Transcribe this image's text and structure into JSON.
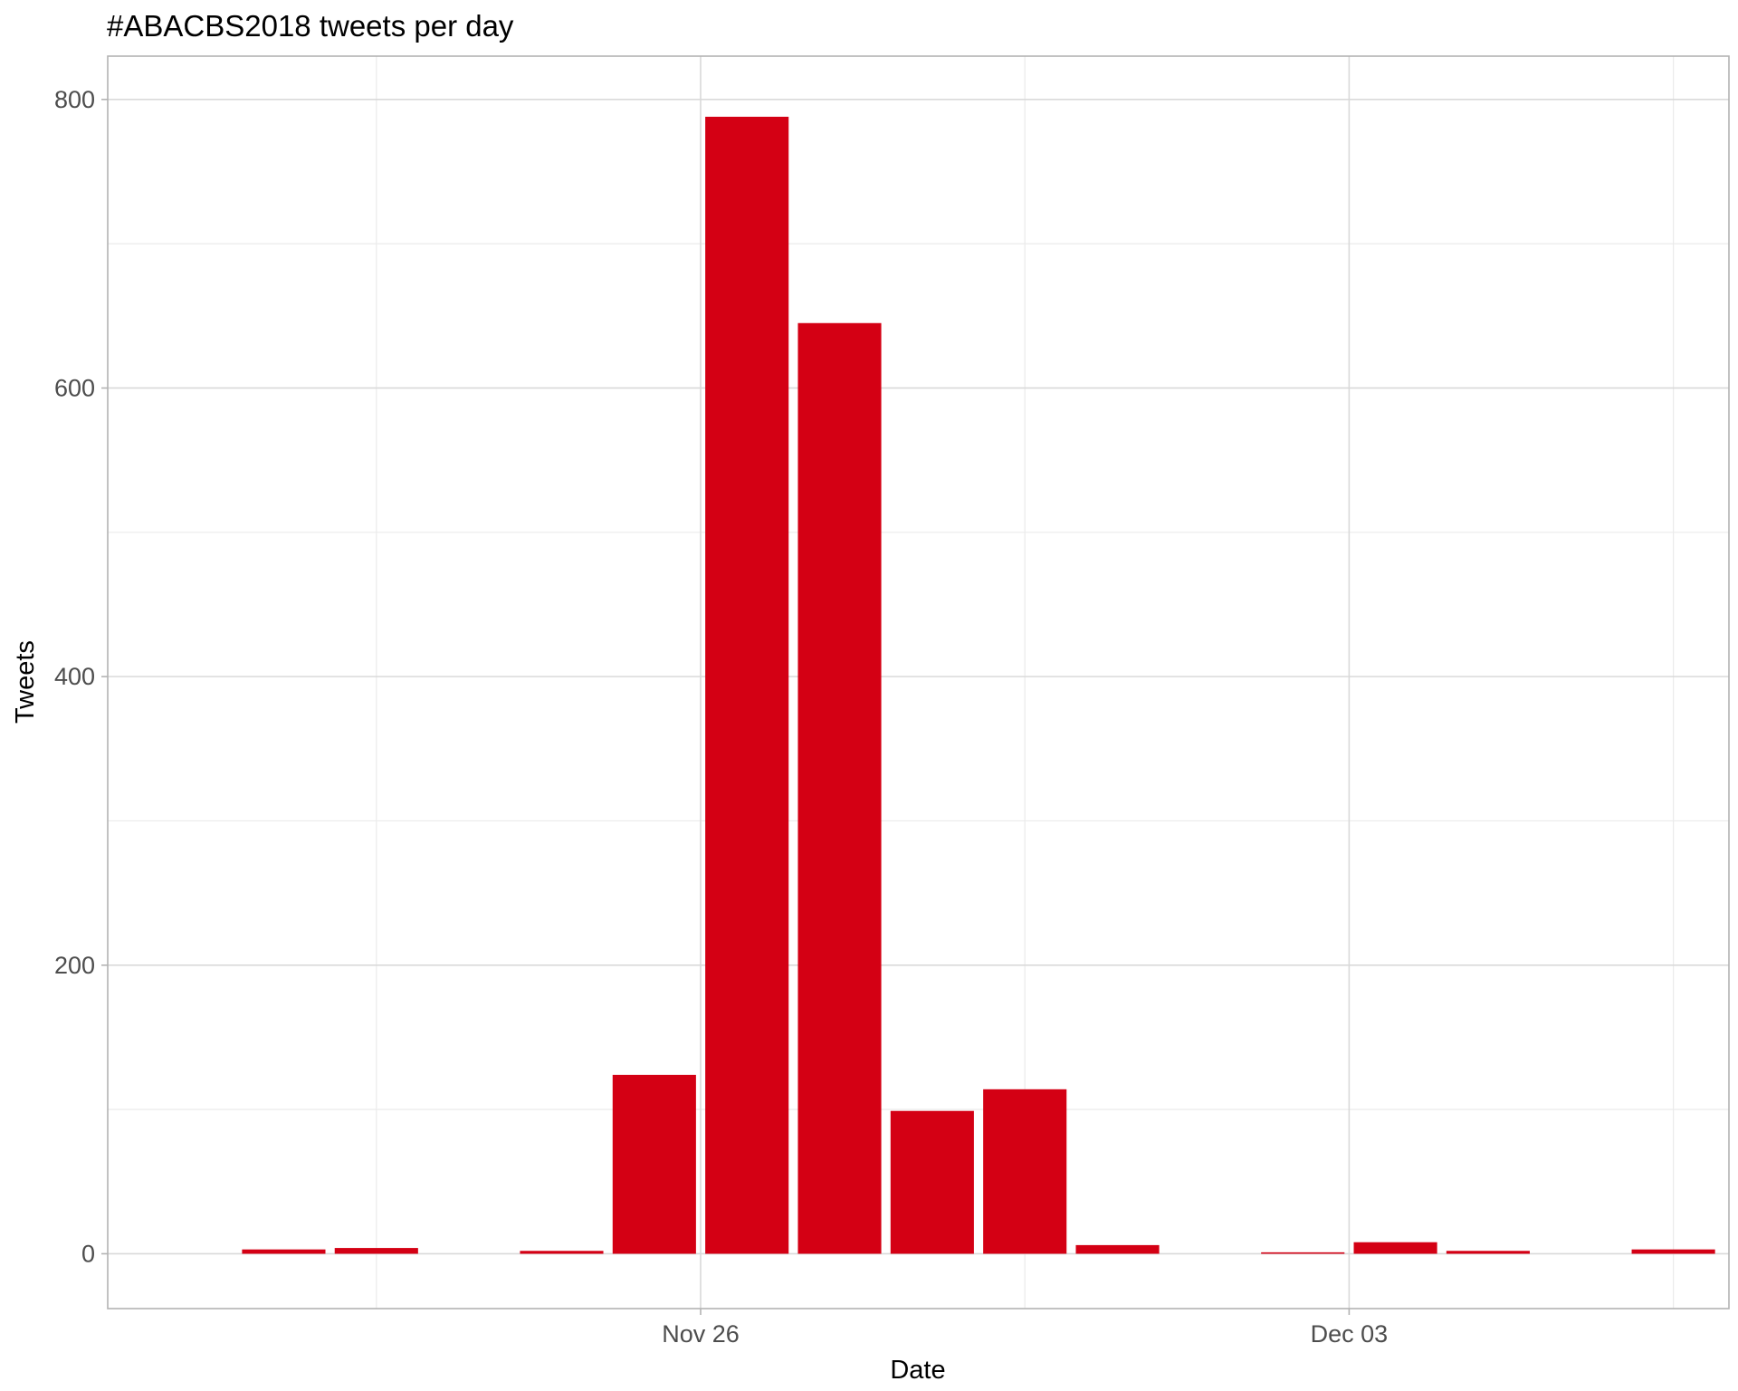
{
  "chart_data": {
    "type": "bar",
    "title": "#ABACBS2018 tweets per day",
    "xlabel": "Date",
    "ylabel": "Tweets",
    "color": "#d40014",
    "x_day_range": [
      -6.4,
      11.1
    ],
    "ylim": [
      -38,
      830
    ],
    "y_major_ticks": [
      0,
      200,
      400,
      600,
      800
    ],
    "y_minor_ticks": [
      100,
      300,
      500,
      700
    ],
    "x_major_ticks": [
      {
        "day": 0,
        "label": "Nov 26"
      },
      {
        "day": 7,
        "label": "Dec 03"
      }
    ],
    "x_minor_ticks": [
      -3.5,
      3.5,
      10.5
    ],
    "grid": true,
    "categories": [
      "Nov 21",
      "Nov 22",
      "Nov 24",
      "Nov 25",
      "Nov 26",
      "Nov 27",
      "Nov 28",
      "Nov 29",
      "Nov 30",
      "Dec 02",
      "Dec 03",
      "Dec 04",
      "Dec 06"
    ],
    "day_offsets": [
      -4.5,
      -3.5,
      -1.5,
      -0.5,
      0.5,
      1.5,
      2.5,
      3.5,
      4.5,
      6.5,
      7.5,
      8.5,
      10.5
    ],
    "values": [
      3,
      4,
      2,
      124,
      788,
      645,
      99,
      114,
      6,
      1,
      8,
      2,
      3
    ]
  }
}
